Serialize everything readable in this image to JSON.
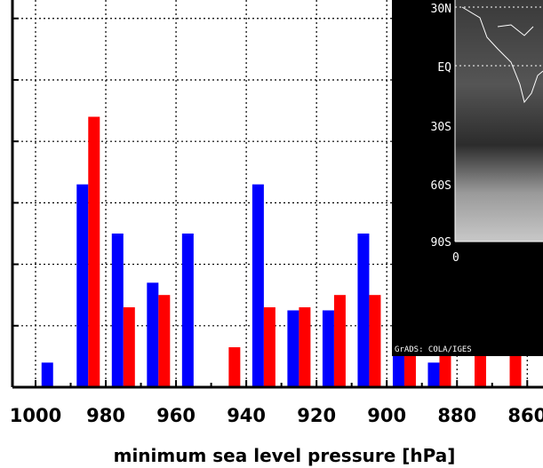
{
  "chart_data": {
    "type": "bar",
    "title": "",
    "xlabel": "minimum sea level pressure [hPa]",
    "ylabel": "",
    "x_tick_labels": [
      "1000",
      "980",
      "960",
      "940",
      "920",
      "900",
      "880",
      "860"
    ],
    "x_reversed": true,
    "categories": [
      995,
      985,
      975,
      965,
      955,
      945,
      935,
      925,
      915,
      905,
      895,
      885,
      875,
      865,
      855
    ],
    "ylim": [
      0,
      6.3
    ],
    "grid": true,
    "colors": {
      "series_a": "#0000ff",
      "series_b": "#ff0000"
    },
    "series": [
      {
        "values": [
          0.4,
          3.3,
          2.5,
          1.7,
          2.5,
          0.0,
          3.3,
          1.25,
          1.25,
          2.5,
          2.1,
          0.4,
          0.0,
          0.0,
          0.0
        ]
      },
      {
        "values": [
          0.0,
          4.4,
          1.3,
          1.5,
          0.0,
          0.65,
          1.3,
          1.3,
          1.5,
          1.5,
          0.65,
          0.6,
          0.6,
          0.6,
          0.6
        ]
      }
    ]
  },
  "inset_map": {
    "lat_labels": [
      "30N",
      "EQ",
      "30S",
      "60S",
      "90S"
    ],
    "lon_label": "0",
    "credit": "GrADS: COLA/IGES"
  }
}
